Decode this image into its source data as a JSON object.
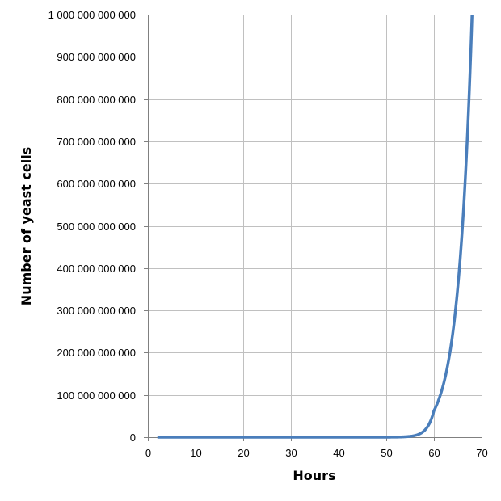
{
  "chart_data": {
    "type": "line",
    "xlabel": "Hours",
    "ylabel": "Number of yeast cells",
    "xlim": [
      0,
      70
    ],
    "ylim": [
      0,
      1000000000000
    ],
    "x_ticks": [
      0,
      10,
      20,
      30,
      40,
      50,
      60,
      70
    ],
    "x_tick_labels": [
      "0",
      "10",
      "20",
      "30",
      "40",
      "50",
      "60",
      "70"
    ],
    "y_ticks": [
      0,
      100000000000,
      200000000000,
      300000000000,
      400000000000,
      500000000000,
      600000000000,
      700000000000,
      800000000000,
      900000000000,
      1000000000000
    ],
    "y_tick_labels": [
      "0",
      "100 000 000 000",
      "200 000 000 000",
      "300 000 000 000",
      "400 000 000 000",
      "500 000 000 000",
      "600 000 000 000",
      "700 000 000 000",
      "800 000 000 000",
      "900 000 000 000",
      "1 000 000 000 000"
    ],
    "grid": true,
    "legend": "none",
    "colors": {
      "line": "#4a7ebb",
      "grid": "#c0c0c0",
      "axis": "#808080"
    },
    "series": [
      {
        "x": [
          2,
          10,
          20,
          30,
          40,
          50,
          52,
          54,
          56,
          58,
          60,
          62,
          63,
          64,
          65,
          66,
          67,
          68
        ],
        "values": [
          0,
          0,
          0,
          0,
          0,
          0,
          250000000,
          1000000000,
          3900000000,
          15600000000,
          62500000000,
          125000000000,
          177000000000,
          250000000000,
          354000000000,
          500000000000,
          707000000000,
          1000000000000
        ]
      }
    ]
  }
}
